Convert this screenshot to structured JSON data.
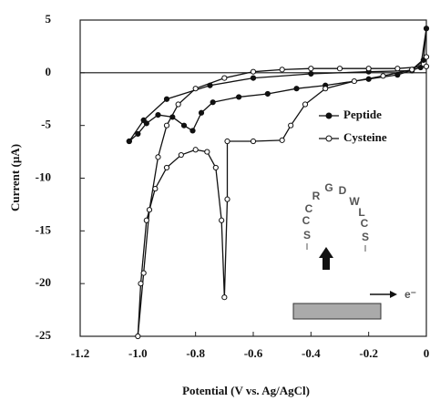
{
  "chart_data": {
    "type": "line",
    "xlabel": "Potential (V vs. Ag/AgCl)",
    "ylabel": "Current (µA)",
    "xlim": [
      -1.2,
      0
    ],
    "ylim": [
      -25,
      5
    ],
    "xticks": [
      -1.2,
      {
        "value": -1,
        "label": "-1.0"
      },
      -0.8,
      -0.6,
      -0.4,
      -0.2,
      0
    ],
    "yticks": [
      5,
      0,
      -5,
      -10,
      -15,
      -20,
      -25
    ],
    "zero_line": true,
    "legend": "right",
    "series": [
      {
        "name": "Peptide",
        "color": "#111111",
        "marker": "filled",
        "x": [
          -1.03,
          -1.0,
          -0.97,
          -0.93,
          -0.88,
          -0.84,
          -0.81,
          -0.78,
          -0.74,
          -0.65,
          -0.55,
          -0.45,
          -0.35,
          -0.2,
          -0.1,
          -0.02,
          0,
          -0.01,
          -0.05,
          -0.2,
          -0.4,
          -0.6,
          -0.75,
          -0.9,
          -0.98,
          -1.03
        ],
        "values": [
          -6.5,
          -5.8,
          -4.8,
          -4.0,
          -4.2,
          -5.0,
          -5.5,
          -3.8,
          -2.8,
          -2.3,
          -2.0,
          -1.5,
          -1.2,
          -0.6,
          -0.2,
          0.5,
          4.2,
          1.2,
          0.2,
          0.1,
          -0.1,
          -0.5,
          -1.2,
          -2.5,
          -4.5,
          -6.5
        ]
      },
      {
        "name": "Cysteine",
        "color": "#111111",
        "marker": "open",
        "x": [
          0,
          -0.1,
          -0.2,
          -0.3,
          -0.4,
          -0.5,
          -0.6,
          -0.7,
          -0.8,
          -0.86,
          -0.9,
          -0.93,
          -0.96,
          -0.98,
          -1.0,
          -0.99,
          -0.97,
          -0.94,
          -0.9,
          -0.85,
          -0.8,
          -0.76,
          -0.73,
          -0.71,
          -0.7,
          -0.69,
          -0.69,
          -0.6,
          -0.5,
          -0.47,
          -0.42,
          -0.35,
          -0.25,
          -0.15,
          -0.05,
          0
        ],
        "values": [
          0.6,
          0.4,
          0.4,
          0.4,
          0.4,
          0.3,
          0.1,
          -0.5,
          -1.5,
          -3,
          -5,
          -8,
          -13,
          -19,
          -25,
          -20,
          -14,
          -11,
          -9,
          -7.8,
          -7.3,
          -7.5,
          -9,
          -14,
          -21.3,
          -12,
          -6.5,
          -6.5,
          -6.4,
          -5,
          -3,
          -1.5,
          -0.8,
          -0.3,
          0.3,
          1.5
        ]
      }
    ]
  },
  "inset": {
    "peptide_letters": [
      "C",
      "C",
      "R",
      "G",
      "D",
      "W",
      "L",
      "C"
    ],
    "thiols": [
      "S",
      "S"
    ],
    "electron": "e⁻"
  }
}
